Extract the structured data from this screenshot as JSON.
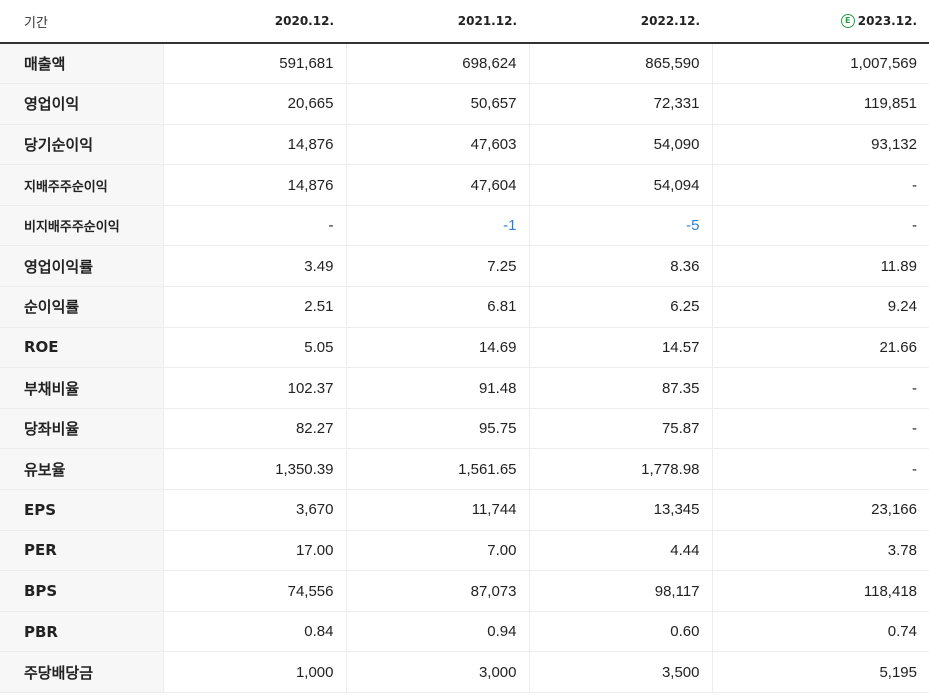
{
  "header": {
    "label": "기간",
    "periods": [
      "2020.12.",
      "2021.12.",
      "2022.12.",
      "2023.12."
    ],
    "estimate_mark": "E"
  },
  "rows": [
    {
      "label": "매출액",
      "values": [
        "591,681",
        "698,624",
        "865,590",
        "1,007,569"
      ]
    },
    {
      "label": "영업이익",
      "values": [
        "20,665",
        "50,657",
        "72,331",
        "119,851"
      ]
    },
    {
      "label": "당기순이익",
      "values": [
        "14,876",
        "47,603",
        "54,090",
        "93,132"
      ]
    },
    {
      "label": "지배주주순이익",
      "values": [
        "14,876",
        "47,604",
        "54,094",
        "-"
      ]
    },
    {
      "label": "비지배주주순이익",
      "values": [
        "-",
        "-1",
        "-5",
        "-"
      ]
    },
    {
      "label": "영업이익률",
      "values": [
        "3.49",
        "7.25",
        "8.36",
        "11.89"
      ]
    },
    {
      "label": "순이익률",
      "values": [
        "2.51",
        "6.81",
        "6.25",
        "9.24"
      ]
    },
    {
      "label": "ROE",
      "values": [
        "5.05",
        "14.69",
        "14.57",
        "21.66"
      ]
    },
    {
      "label": "부채비율",
      "values": [
        "102.37",
        "91.48",
        "87.35",
        "-"
      ]
    },
    {
      "label": "당좌비율",
      "values": [
        "82.27",
        "95.75",
        "75.87",
        "-"
      ]
    },
    {
      "label": "유보율",
      "values": [
        "1,350.39",
        "1,561.65",
        "1,778.98",
        "-"
      ]
    },
    {
      "label": "EPS",
      "values": [
        "3,670",
        "11,744",
        "13,345",
        "23,166"
      ]
    },
    {
      "label": "PER",
      "values": [
        "17.00",
        "7.00",
        "4.44",
        "3.78"
      ]
    },
    {
      "label": "BPS",
      "values": [
        "74,556",
        "87,073",
        "98,117",
        "118,418"
      ]
    },
    {
      "label": "PBR",
      "values": [
        "0.84",
        "0.94",
        "0.60",
        "0.74"
      ]
    },
    {
      "label": "주당배당금",
      "values": [
        "1,000",
        "3,000",
        "3,500",
        "5,195"
      ]
    }
  ],
  "colors": {
    "negative": "#2a80d6",
    "estimate": "#2a9d4a",
    "label_bg": "#f7f7f7"
  }
}
